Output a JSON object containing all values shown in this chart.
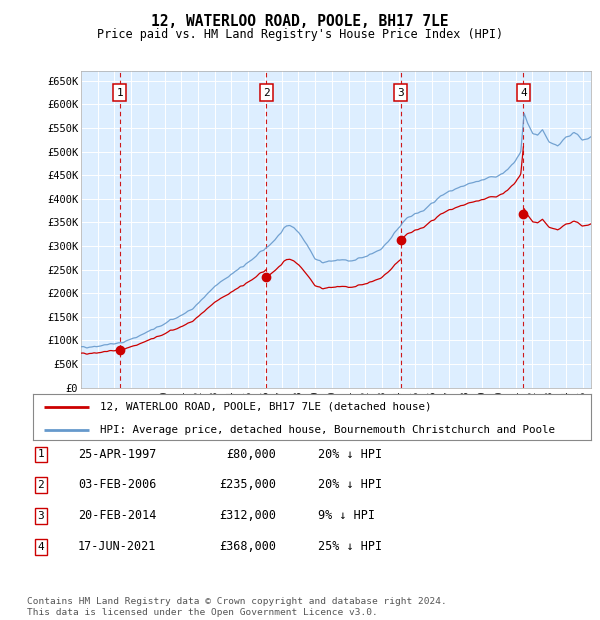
{
  "title": "12, WATERLOO ROAD, POOLE, BH17 7LE",
  "subtitle": "Price paid vs. HM Land Registry's House Price Index (HPI)",
  "ylabel_ticks": [
    "£0",
    "£50K",
    "£100K",
    "£150K",
    "£200K",
    "£250K",
    "£300K",
    "£350K",
    "£400K",
    "£450K",
    "£500K",
    "£550K",
    "£600K",
    "£650K"
  ],
  "ytick_values": [
    0,
    50000,
    100000,
    150000,
    200000,
    250000,
    300000,
    350000,
    400000,
    450000,
    500000,
    550000,
    600000,
    650000
  ],
  "ylim": [
    0,
    670000
  ],
  "xlim_start": 1995.0,
  "xlim_end": 2025.5,
  "sale_dates": [
    1997.32,
    2006.09,
    2014.13,
    2021.46
  ],
  "sale_prices": [
    80000,
    235000,
    312000,
    368000
  ],
  "sale_labels": [
    "1",
    "2",
    "3",
    "4"
  ],
  "legend_line1": "12, WATERLOO ROAD, POOLE, BH17 7LE (detached house)",
  "legend_line2": "HPI: Average price, detached house, Bournemouth Christchurch and Poole",
  "table_rows": [
    [
      "1",
      "25-APR-1997",
      "£80,000",
      "20% ↓ HPI"
    ],
    [
      "2",
      "03-FEB-2006",
      "£235,000",
      "20% ↓ HPI"
    ],
    [
      "3",
      "20-FEB-2014",
      "£312,000",
      "9% ↓ HPI"
    ],
    [
      "4",
      "17-JUN-2021",
      "£368,000",
      "25% ↓ HPI"
    ]
  ],
  "footnote": "Contains HM Land Registry data © Crown copyright and database right 2024.\nThis data is licensed under the Open Government Licence v3.0.",
  "hpi_color": "#6699cc",
  "price_color": "#cc0000",
  "bg_color": "#ddeeff",
  "grid_color": "#ffffff",
  "sale_line_color": "#cc0000",
  "box_color": "#cc0000"
}
